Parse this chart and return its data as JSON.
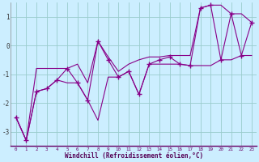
{
  "xlabel": "Windchill (Refroidissement éolien,°C)",
  "background_color": "#cceeff",
  "grid_color": "#99cccc",
  "line_color": "#880088",
  "x_data": [
    0,
    1,
    2,
    3,
    4,
    5,
    6,
    7,
    8,
    9,
    10,
    11,
    12,
    13,
    14,
    15,
    16,
    17,
    18,
    19,
    20,
    21,
    22,
    23
  ],
  "y_actual": [
    -2.5,
    -3.3,
    -1.6,
    -1.5,
    -1.2,
    -0.8,
    -1.3,
    -1.9,
    0.15,
    -0.5,
    -1.1,
    -0.9,
    -1.7,
    -0.65,
    -0.5,
    -0.4,
    -0.65,
    -0.7,
    1.3,
    1.4,
    -0.5,
    1.1,
    -0.35,
    0.8
  ],
  "y_max": [
    -2.5,
    -3.3,
    -0.8,
    -0.8,
    -0.8,
    -0.8,
    -0.65,
    -1.3,
    0.15,
    -0.4,
    -0.9,
    -0.65,
    -0.5,
    -0.4,
    -0.4,
    -0.35,
    -0.35,
    -0.35,
    1.3,
    1.4,
    1.4,
    1.1,
    1.1,
    0.8
  ],
  "y_min": [
    -2.5,
    -3.3,
    -1.6,
    -1.5,
    -1.2,
    -1.3,
    -1.3,
    -1.9,
    -2.6,
    -1.1,
    -1.1,
    -0.9,
    -1.7,
    -0.65,
    -0.65,
    -0.65,
    -0.65,
    -0.7,
    -0.7,
    -0.7,
    -0.5,
    -0.5,
    -0.35,
    -0.35
  ],
  "ylim": [
    -3.5,
    1.5
  ],
  "yticks": [
    -3,
    -2,
    -1,
    0,
    1
  ],
  "xlim": [
    -0.5,
    23.5
  ],
  "figsize": [
    3.2,
    2.0
  ],
  "dpi": 100
}
